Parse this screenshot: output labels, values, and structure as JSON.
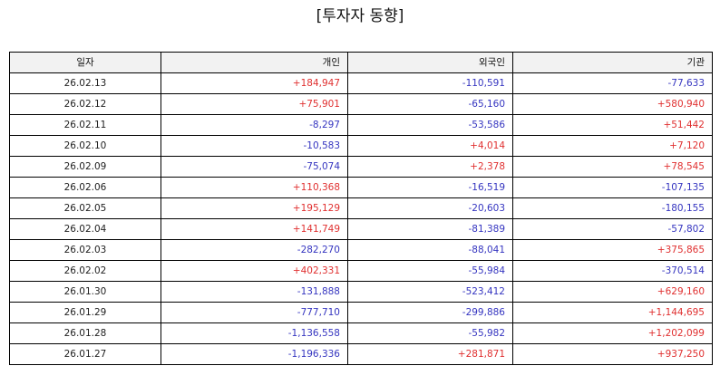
{
  "title": "[투자자 동향]",
  "colors": {
    "positive": "#e03030",
    "negative": "#3535c0",
    "header_bg": "#f2f2f2"
  },
  "table": {
    "headers": [
      "일자",
      "개인",
      "외국인",
      "기관"
    ],
    "rows": [
      [
        "26.02.13",
        "+184,947",
        "-110,591",
        "-77,633"
      ],
      [
        "26.02.12",
        "+75,901",
        "-65,160",
        "+580,940"
      ],
      [
        "26.02.11",
        "-8,297",
        "-53,586",
        "+51,442"
      ],
      [
        "26.02.10",
        "-10,583",
        "+4,014",
        "+7,120"
      ],
      [
        "26.02.09",
        "-75,074",
        "+2,378",
        "+78,545"
      ],
      [
        "26.02.06",
        "+110,368",
        "-16,519",
        "-107,135"
      ],
      [
        "26.02.05",
        "+195,129",
        "-20,603",
        "-180,155"
      ],
      [
        "26.02.04",
        "+141,749",
        "-81,389",
        "-57,802"
      ],
      [
        "26.02.03",
        "-282,270",
        "-88,041",
        "+375,865"
      ],
      [
        "26.02.02",
        "+402,331",
        "-55,984",
        "-370,514"
      ],
      [
        "26.01.30",
        "-131,888",
        "-523,412",
        "+629,160"
      ],
      [
        "26.01.29",
        "-777,710",
        "-299,886",
        "+1,144,695"
      ],
      [
        "26.01.28",
        "-1,136,558",
        "-55,982",
        "+1,202,099"
      ],
      [
        "26.01.27",
        "-1,196,336",
        "+281,871",
        "+937,250"
      ]
    ]
  }
}
